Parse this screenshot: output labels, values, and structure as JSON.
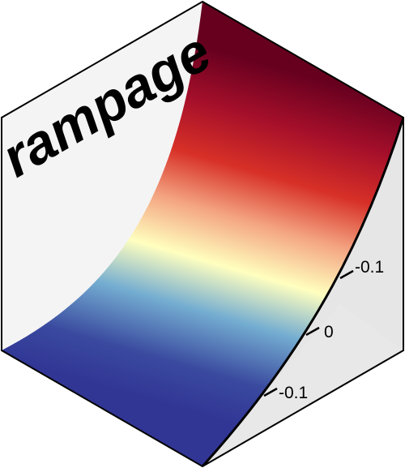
{
  "logo": {
    "title": "rampage",
    "axis_ticks": [
      "-0.1",
      "0",
      "-0.1"
    ]
  },
  "colors": {
    "background_panel": "#f4f4f4",
    "floor_panel": "#e6e6e6",
    "outline": "#000000",
    "ramp_bottom": "#313695",
    "ramp_blue": "#74add1",
    "ramp_yellow": "#ffffbf",
    "ramp_orange": "#f46d43",
    "ramp_red": "#d73027",
    "ramp_top": "#67001f"
  }
}
